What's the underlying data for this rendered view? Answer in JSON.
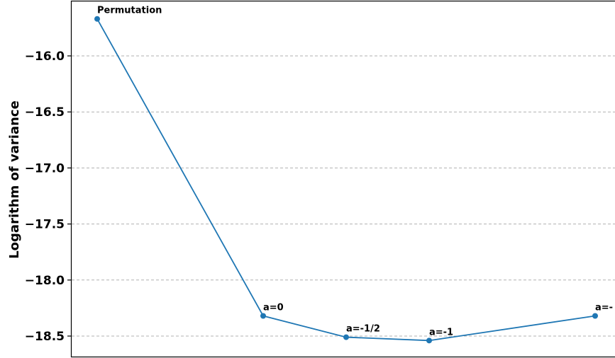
{
  "chart_data": {
    "type": "line",
    "title": "",
    "xlabel": "",
    "ylabel": "Logarithm of variance",
    "ylim": [
      -18.65,
      -15.55
    ],
    "yticks": [
      -16.0,
      -16.5,
      -17.0,
      -17.5,
      -18.0,
      -18.5
    ],
    "ytick_labels": [
      "−16.0",
      "−16.5",
      "−17.0",
      "−17.5",
      "−18.0",
      "−18.5"
    ],
    "grid": "y",
    "series": [
      {
        "color": "#1f77b4",
        "points": [
          {
            "x": 0,
            "y": -15.67,
            "label": "Permutation"
          },
          {
            "x": 1,
            "y": -18.32,
            "label": "a=0"
          },
          {
            "x": 1.5,
            "y": -18.51,
            "label": "a=-1/2"
          },
          {
            "x": 2,
            "y": -18.54,
            "label": "a=-1"
          },
          {
            "x": 3,
            "y": -18.32,
            "label": "a=-"
          }
        ]
      }
    ]
  }
}
